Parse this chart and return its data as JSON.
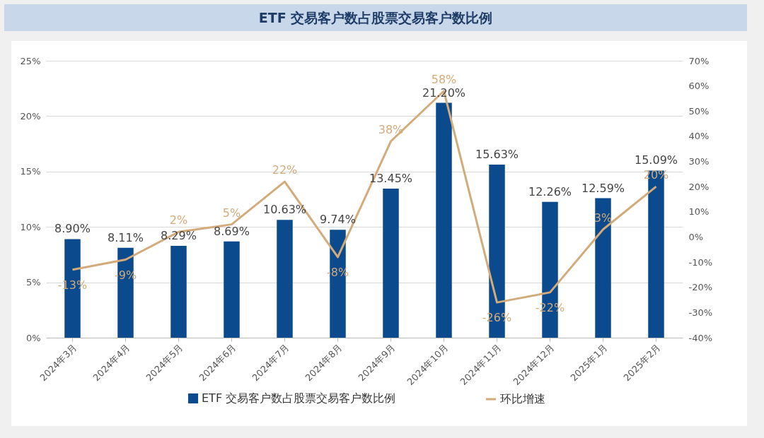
{
  "chart_data": {
    "type": "bar",
    "title": "ETF 交易客户数占股票交易客户数比例",
    "categories": [
      "2024年3月",
      "2024年4月",
      "2024年5月",
      "2024年6月",
      "2024年7月",
      "2024年8月",
      "2024年9月",
      "2024年10月",
      "2024年11月",
      "2024年12月",
      "2025年1月",
      "2025年2月"
    ],
    "series": [
      {
        "name": "ETF 交易客户数占股票交易客户数比例",
        "color": "#0b4a8c",
        "values": [
          8.9,
          8.11,
          8.29,
          8.69,
          10.63,
          9.74,
          13.45,
          21.2,
          15.63,
          12.26,
          12.59,
          15.09
        ]
      },
      {
        "name": "环比增速",
        "type": "line",
        "axis": "y2",
        "color": "#d3ab7a",
        "values": [
          -13,
          -9,
          2,
          5,
          22,
          -8,
          38,
          58,
          -26,
          -22,
          3,
          20
        ]
      }
    ],
    "ylim": [
      0,
      25
    ],
    "yticks": [
      {
        "value": 0,
        "label": "0%"
      },
      {
        "value": 5,
        "label": "5%"
      },
      {
        "value": 10,
        "label": "10%"
      },
      {
        "value": 15,
        "label": "15%"
      },
      {
        "value": 20,
        "label": "20%"
      },
      {
        "value": 25,
        "label": "25%"
      }
    ],
    "y2lim": [
      -40,
      70
    ],
    "y2ticks": [
      {
        "value": -40,
        "label": "-40%"
      },
      {
        "value": -30,
        "label": "-30%"
      },
      {
        "value": -20,
        "label": "-20%"
      },
      {
        "value": -10,
        "label": "-10%"
      },
      {
        "value": 0,
        "label": "0%"
      },
      {
        "value": 10,
        "label": "10%"
      },
      {
        "value": 20,
        "label": "20%"
      },
      {
        "value": 30,
        "label": "30%"
      },
      {
        "value": 40,
        "label": "40%"
      },
      {
        "value": 50,
        "label": "50%"
      },
      {
        "value": 60,
        "label": "60%"
      },
      {
        "value": 70,
        "label": "70%"
      }
    ],
    "value_labels": [
      [
        "8.90%",
        "8.11%",
        "8.29%",
        "8.69%",
        "10.63%",
        "9.74%",
        "13.45%",
        "21.20%",
        "15.63%",
        "12.26%",
        "12.59%",
        "15.09%"
      ],
      [
        "-13%",
        "-9%",
        "2%",
        "5%",
        "22%",
        "-8%",
        "38%",
        "58%",
        "-26%",
        "-22%",
        "3%",
        "20%"
      ]
    ],
    "grid": "y",
    "legend": "bottom",
    "line_style": "solid"
  }
}
